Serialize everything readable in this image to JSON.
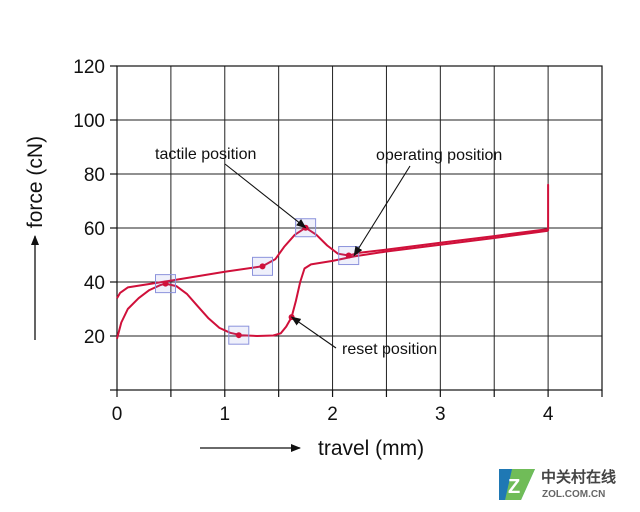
{
  "chart_data": {
    "type": "line",
    "title": "",
    "xlabel": "travel (mm)",
    "ylabel": "force (cN)",
    "xlim": [
      0,
      4.5
    ],
    "ylim": [
      0,
      120
    ],
    "xticks": [
      0,
      1,
      2,
      3,
      4
    ],
    "xtick_labels": [
      "0",
      "1",
      "2",
      "3",
      "4"
    ],
    "yticks": [
      20,
      40,
      60,
      80,
      100,
      120
    ],
    "ytick_labels": [
      "20",
      "40",
      "60",
      "80",
      "100",
      "120"
    ],
    "grid": true,
    "line_color": "#d0103a",
    "series": [
      {
        "values": [
          [
            0.0,
            19
          ],
          [
            0.04,
            25
          ],
          [
            0.1,
            30
          ],
          [
            0.2,
            34
          ],
          [
            0.3,
            37
          ],
          [
            0.4,
            38.8
          ],
          [
            0.45,
            39.4
          ],
          [
            0.55,
            38.5
          ],
          [
            0.65,
            35.5
          ],
          [
            0.75,
            31
          ],
          [
            0.85,
            26.5
          ],
          [
            0.95,
            23
          ],
          [
            1.05,
            21.2
          ],
          [
            1.15,
            20.3
          ],
          [
            1.3,
            20
          ],
          [
            1.45,
            20.2
          ],
          [
            1.52,
            21
          ],
          [
            1.57,
            23.5
          ],
          [
            1.62,
            27
          ],
          [
            1.66,
            33
          ],
          [
            1.7,
            40
          ],
          [
            1.74,
            45
          ],
          [
            1.8,
            46.5
          ],
          [
            1.9,
            47.2
          ],
          [
            2.0,
            47.8
          ],
          [
            2.2,
            49.5
          ],
          [
            2.5,
            51.3
          ],
          [
            3.0,
            53.8
          ],
          [
            3.5,
            56.3
          ],
          [
            4.0,
            59
          ]
        ]
      },
      {
        "values": [
          [
            4.0,
            59
          ],
          [
            4.0,
            76
          ],
          [
            4.0,
            59.6
          ],
          [
            3.5,
            57
          ],
          [
            3.0,
            54.5
          ],
          [
            2.5,
            52
          ],
          [
            2.25,
            50.8
          ],
          [
            2.15,
            49.8
          ],
          [
            2.05,
            50.5
          ],
          [
            1.95,
            53.5
          ],
          [
            1.85,
            57.5
          ],
          [
            1.75,
            60.1
          ],
          [
            1.65,
            57.5
          ],
          [
            1.55,
            53
          ],
          [
            1.47,
            48.5
          ],
          [
            1.35,
            45.8
          ],
          [
            1.0,
            43.8
          ],
          [
            0.5,
            40.5
          ],
          [
            0.1,
            38
          ],
          [
            0.03,
            36
          ],
          [
            0.0,
            34
          ]
        ]
      }
    ],
    "markers": [
      {
        "x": 0.45,
        "y": 39.4
      },
      {
        "x": 1.13,
        "y": 20.3
      },
      {
        "x": 1.35,
        "y": 45.8
      },
      {
        "x": 1.75,
        "y": 60.1
      },
      {
        "x": 2.15,
        "y": 49.8
      },
      {
        "x": 1.62,
        "y": 27
      }
    ],
    "annotations": [
      {
        "text": "tactile position",
        "target": {
          "x": 1.75,
          "y": 60.1
        }
      },
      {
        "text": "operating position",
        "target": {
          "x": 2.2,
          "y": 49.8
        }
      },
      {
        "text": "reset position",
        "target": {
          "x": 1.62,
          "y": 27
        }
      }
    ]
  },
  "watermark": {
    "cn": "中关村在线",
    "en": "ZOL.COM.CN"
  }
}
